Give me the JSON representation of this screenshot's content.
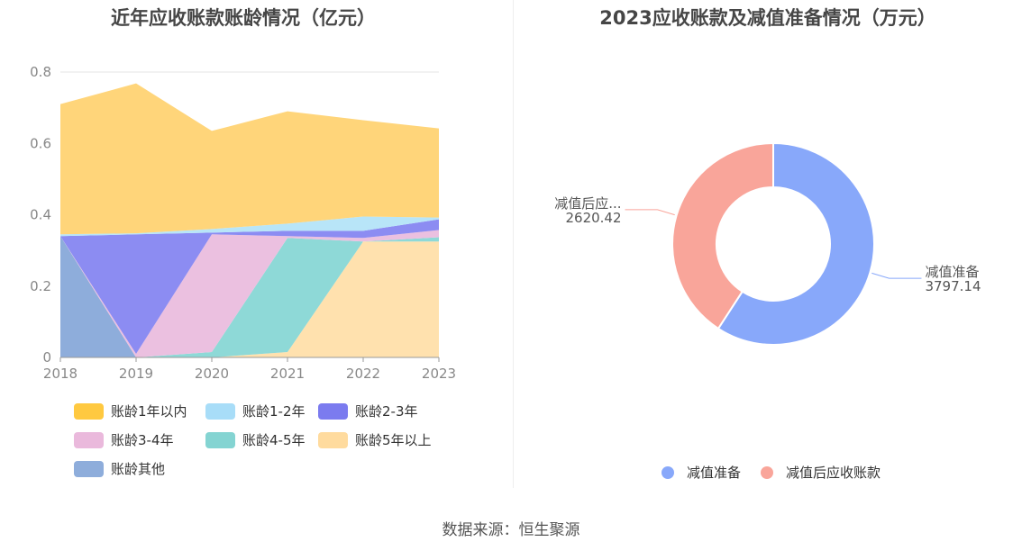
{
  "source_text": "数据来源：恒生聚源",
  "chart_data": [
    {
      "type": "area",
      "stacked": true,
      "title": "近年应收账款账龄情况（亿元）",
      "categories": [
        "2018",
        "2019",
        "2020",
        "2021",
        "2022",
        "2023"
      ],
      "ylim": [
        0,
        0.8
      ],
      "yticks": [
        "0",
        "0.2",
        "0.4",
        "0.6",
        "0.8"
      ],
      "grid": true,
      "legend_position": "bottom",
      "series": [
        {
          "name": "账龄其他",
          "color": "#8EADDB",
          "values": [
            0.34,
            0.0,
            0.0,
            0.0,
            0.0,
            0.0
          ]
        },
        {
          "name": "账龄5年以上",
          "color": "#FFE1AE",
          "values": [
            0.0,
            0.0,
            0.0,
            0.015,
            0.325,
            0.325
          ]
        },
        {
          "name": "账龄4-5年",
          "color": "#8ED9D7",
          "values": [
            0.0,
            0.0,
            0.015,
            0.32,
            0.0,
            0.012
          ]
        },
        {
          "name": "账龄3-4年",
          "color": "#EBC0E0",
          "values": [
            0.0,
            0.01,
            0.33,
            0.005,
            0.01,
            0.02
          ]
        },
        {
          "name": "账龄2-3年",
          "color": "#8C8CF2",
          "values": [
            0.0,
            0.335,
            0.005,
            0.015,
            0.02,
            0.03
          ]
        },
        {
          "name": "账龄1-2年",
          "color": "#B8E5F8",
          "values": [
            0.005,
            0.003,
            0.01,
            0.02,
            0.04,
            0.005
          ]
        },
        {
          "name": "账龄1年以内",
          "color": "#FFD57A",
          "values": [
            0.365,
            0.42,
            0.275,
            0.315,
            0.27,
            0.25
          ]
        }
      ],
      "legend_order": [
        "账龄1年以内",
        "账龄1-2年",
        "账龄2-3年",
        "账龄3-4年",
        "账龄4-5年",
        "账龄5年以上",
        "账龄其他"
      ],
      "legend_colors": {
        "账龄1年以内": "#FFC940",
        "账龄1-2年": "#A8DDF8",
        "账龄2-3年": "#7B7BEF",
        "账龄3-4年": "#EAB9DC",
        "账龄4-5年": "#84D4D2",
        "账龄5年以上": "#FFDB9E",
        "账龄其他": "#8EADDB"
      }
    },
    {
      "type": "pie",
      "donut": true,
      "title": "2023应收账款及减值准备情况（万元）",
      "legend_position": "bottom",
      "slices": [
        {
          "name": "减值准备",
          "value": 3797.14,
          "color": "#88A8FA",
          "label": "减值准备",
          "value_label": "3797.14"
        },
        {
          "name": "减值后应收账款",
          "value": 2620.42,
          "color": "#F9A59A",
          "label": "减值后应...",
          "value_label": "2620.42"
        }
      ]
    }
  ]
}
